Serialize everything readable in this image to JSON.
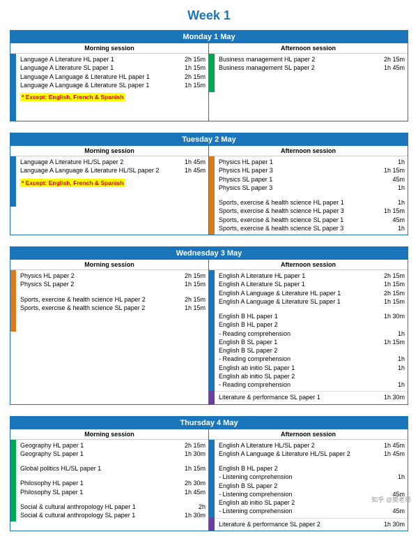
{
  "page": {
    "week_title": "Week 1",
    "title_color": "#1b75bb",
    "accent_colors": {
      "blue": "#1b75bb",
      "green": "#00a651",
      "orange": "#d97a1b",
      "purple": "#6b3fa0"
    },
    "highlight_bg": "#ffff00",
    "highlight_fg": "#d40000",
    "watermark": "知乎 @樊老师"
  },
  "days": [
    {
      "date": "Monday 1 May",
      "morning": {
        "header": "Morning session",
        "segments": [
          {
            "stripe": "#1b75bb",
            "rows": [
              {
                "label": "Language A Literature HL paper 1",
                "dur": "2h 15m"
              },
              {
                "label": "Language A Literature SL paper 1",
                "dur": "1h 15m"
              },
              {
                "label": "Language A Language & Literature HL paper 1",
                "dur": "2h 15m"
              },
              {
                "label": "Language A Language & Literature SL paper 1",
                "dur": "1h 15m"
              }
            ],
            "except": "* Except: English, French & Spanish",
            "trailing_space": true
          }
        ]
      },
      "afternoon": {
        "header": "Afternoon session",
        "segments": [
          {
            "stripe": "#00a651",
            "rows": [
              {
                "label": "Business management HL paper 2",
                "dur": "2h 15m"
              },
              {
                "label": "Business management SL paper 2",
                "dur": "1h 45m"
              }
            ],
            "trailing_space": true
          }
        ]
      }
    },
    {
      "date": "Tuesday 2 May",
      "morning": {
        "header": "Morning session",
        "segments": [
          {
            "stripe": "#1b75bb",
            "rows": [
              {
                "label": "Language A Literature HL/SL paper 2",
                "dur": "1h 45m"
              },
              {
                "label": "Language A Language & Literature HL/SL paper 2",
                "dur": "1h 45m"
              }
            ],
            "except": "* Except: English, French & Spanish",
            "trailing_space": true
          }
        ]
      },
      "afternoon": {
        "header": "Afternoon session",
        "segments": [
          {
            "stripe": "#d97a1b",
            "rows": [
              {
                "label": "Physics HL paper 1",
                "dur": "1h"
              },
              {
                "label": "Physics HL paper 3",
                "dur": "1h 15m"
              },
              {
                "label": "Physics SL paper 1",
                "dur": "45m"
              },
              {
                "label": "Physics SL paper 3",
                "dur": "1h"
              },
              {
                "label": "",
                "dur": ""
              },
              {
                "label": "Sports, exercise & health science HL paper 1",
                "dur": "1h"
              },
              {
                "label": "Sports, exercise & health science HL paper 3",
                "dur": "1h 15m"
              },
              {
                "label": "Sports, exercise & health science SL paper 1",
                "dur": "45m"
              },
              {
                "label": "Sports, exercise & health science SL paper 3",
                "dur": "1h"
              }
            ]
          }
        ]
      }
    },
    {
      "date": "Wednesday 3 May",
      "morning": {
        "header": "Morning session",
        "segments": [
          {
            "stripe": "#d97a1b",
            "rows": [
              {
                "label": "Physics HL paper 2",
                "dur": "2h 15m"
              },
              {
                "label": "Physics SL paper 2",
                "dur": "1h 15m"
              },
              {
                "label": "",
                "dur": ""
              },
              {
                "label": "Sports, exercise & health science HL paper 2",
                "dur": "2h 15m"
              },
              {
                "label": "Sports, exercise & health science SL paper 2",
                "dur": "1h 15m"
              }
            ],
            "trailing_space": true
          }
        ]
      },
      "afternoon": {
        "header": "Afternoon session",
        "segments": [
          {
            "stripe": "#1b75bb",
            "rows": [
              {
                "label": "English A Literature HL paper 1",
                "dur": "2h 15m"
              },
              {
                "label": "English A Literature SL paper 1",
                "dur": "1h 15m"
              },
              {
                "label": "English A Language & Literature HL paper 1",
                "dur": "2h 15m"
              },
              {
                "label": "English A Language & Literature SL paper 1",
                "dur": "1h 15m"
              },
              {
                "label": "",
                "dur": ""
              },
              {
                "label": "English B HL paper 1",
                "dur": "1h 30m"
              },
              {
                "label": "English B HL paper 2",
                "dur": ""
              },
              {
                "label": "- Reading comprehension",
                "dur": "1h"
              },
              {
                "label": "English B SL paper 1",
                "dur": "1h 15m"
              },
              {
                "label": "English B SL paper 2",
                "dur": ""
              },
              {
                "label": "- Reading comprehension",
                "dur": "1h"
              },
              {
                "label": "English ab initio SL paper 1",
                "dur": "1h"
              },
              {
                "label": "English ab initio SL paper 2",
                "dur": ""
              },
              {
                "label": "- Reading comprehension",
                "dur": "1h"
              }
            ]
          },
          {
            "stripe": "#6b3fa0",
            "rows": [
              {
                "label": "Literature & performance SL paper 1",
                "dur": "1h 30m"
              }
            ]
          }
        ]
      }
    },
    {
      "date": "Thursday 4 May",
      "morning": {
        "header": "Morning session",
        "segments": [
          {
            "stripe": "#00a651",
            "rows": [
              {
                "label": "Geography HL paper 1",
                "dur": "2h 15m"
              },
              {
                "label": "Geography SL paper 1",
                "dur": "1h 30m"
              },
              {
                "label": "",
                "dur": ""
              },
              {
                "label": "Global politics HL/SL paper 1",
                "dur": "1h 15m"
              },
              {
                "label": "",
                "dur": ""
              },
              {
                "label": "Philosophy HL paper 1",
                "dur": "2h 30m"
              },
              {
                "label": "Philosophy SL paper 1",
                "dur": "1h 45m"
              },
              {
                "label": "",
                "dur": ""
              },
              {
                "label": "Social & cultural anthropology HL paper 1",
                "dur": "2h"
              },
              {
                "label": "Social & cultural anthropology SL paper 1",
                "dur": "1h 30m"
              }
            ]
          }
        ]
      },
      "afternoon": {
        "header": "Afternoon session",
        "segments": [
          {
            "stripe": "#1b75bb",
            "rows": [
              {
                "label": "English A Literature HL/SL paper 2",
                "dur": "1h 45m"
              },
              {
                "label": "English A Language & Literature HL/SL paper 2",
                "dur": "1h 45m"
              },
              {
                "label": "",
                "dur": ""
              },
              {
                "label": "English B HL paper 2",
                "dur": ""
              },
              {
                "label": "- Listening comprehension",
                "dur": "1h"
              },
              {
                "label": "English B SL paper 2",
                "dur": ""
              },
              {
                "label": "- Listening comprehension",
                "dur": "45m"
              },
              {
                "label": "English ab initio SL paper 2",
                "dur": ""
              },
              {
                "label": "- Listening comprehension",
                "dur": "45m"
              }
            ]
          },
          {
            "stripe": "#6b3fa0",
            "rows": [
              {
                "label": "Literature & performance SL paper 2",
                "dur": "1h 30m"
              }
            ]
          }
        ]
      }
    }
  ]
}
